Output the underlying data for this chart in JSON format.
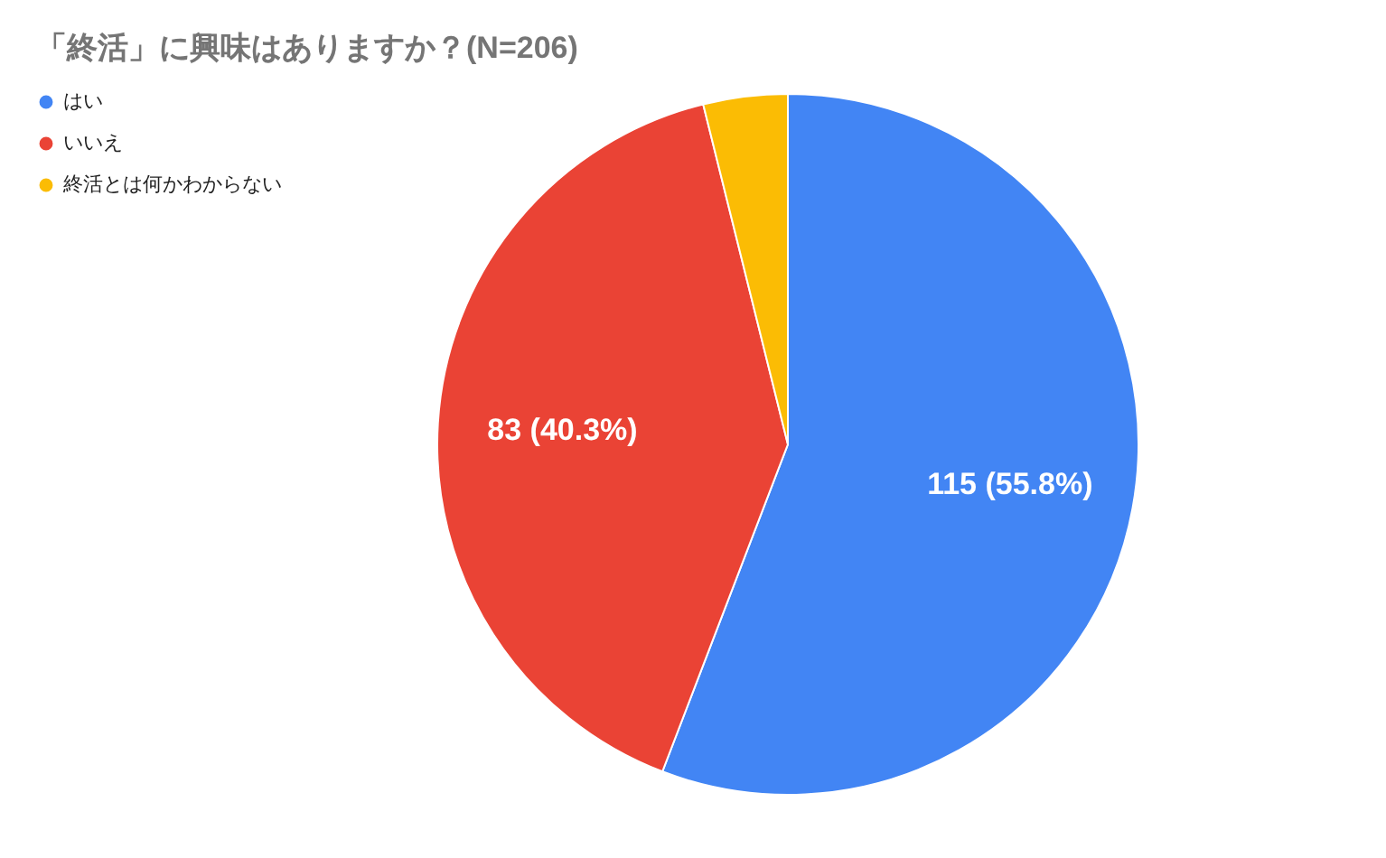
{
  "chart_data": {
    "type": "pie",
    "title": "「終活」に興味はありますか？(N=206)",
    "categories": [
      "はい",
      "いいえ",
      "終活とは何かわからない"
    ],
    "values": [
      115,
      83,
      8
    ],
    "colors": [
      "#4285f4",
      "#ea4335",
      "#fbbc04"
    ],
    "value_labels": [
      "115 (55.8%)",
      "83 (40.3%)",
      null
    ],
    "legend": "left"
  }
}
